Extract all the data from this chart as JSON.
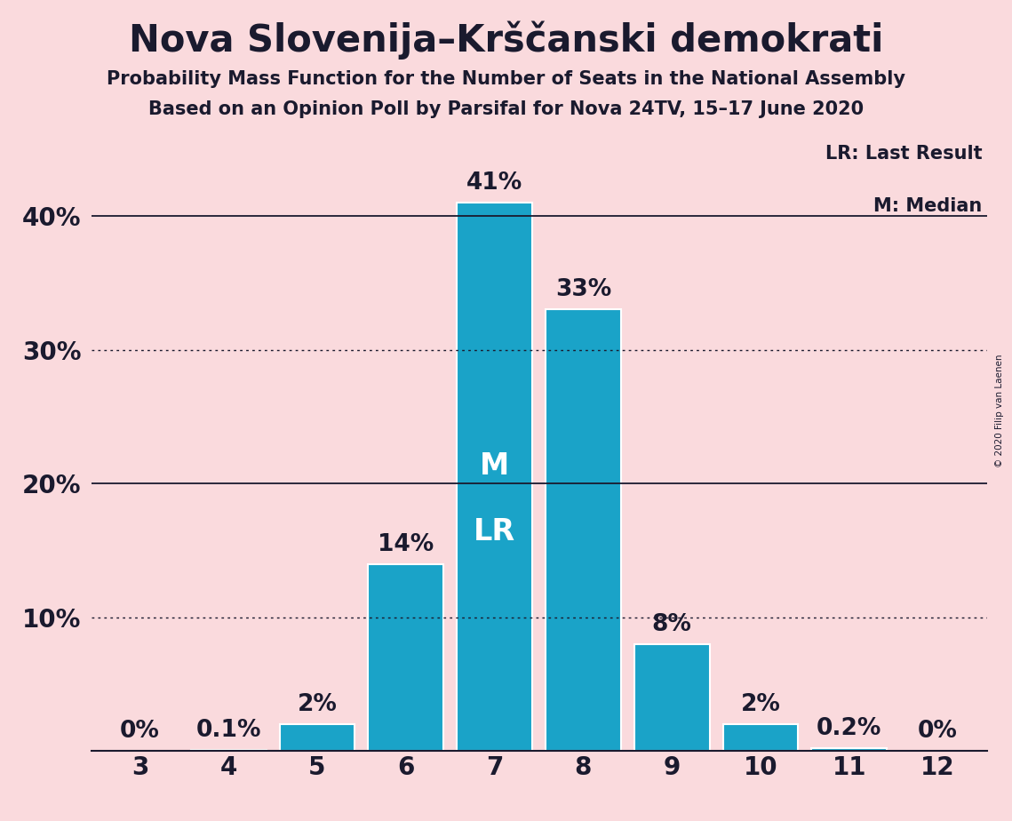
{
  "title": "Nova Slovenija–Krščanski demokrati",
  "subtitle1": "Probability Mass Function for the Number of Seats in the National Assembly",
  "subtitle2": "Based on an Opinion Poll by Parsifal for Nova 24TV, 15–17 June 2020",
  "copyright": "© 2020 Filip van Laenen",
  "categories": [
    3,
    4,
    5,
    6,
    7,
    8,
    9,
    10,
    11,
    12
  ],
  "values": [
    0.0,
    0.1,
    2.0,
    14.0,
    41.0,
    33.0,
    8.0,
    2.0,
    0.2,
    0.0
  ],
  "labels": [
    "0%",
    "0.1%",
    "2%",
    "14%",
    "41%",
    "33%",
    "8%",
    "2%",
    "0.2%",
    "0%"
  ],
  "bar_color": "#1aa3c8",
  "background_color": "#fadadd",
  "bar_edge_color": "white",
  "text_color": "#1a1a2e",
  "median_seat": 7,
  "last_result_seat": 7,
  "median_label": "M",
  "lr_label": "LR",
  "legend_lr": "LR: Last Result",
  "legend_m": "M: Median",
  "ylim": [
    0,
    46
  ],
  "yticks": [
    0,
    10,
    20,
    30,
    40
  ],
  "ytick_labels": [
    "",
    "10%",
    "20%",
    "30%",
    "40%"
  ],
  "hlines_solid": [
    20,
    40
  ],
  "hlines_dotted": [
    10,
    30
  ],
  "title_fontsize": 30,
  "subtitle_fontsize": 15,
  "axis_tick_fontsize": 20,
  "bar_label_fontsize": 19,
  "legend_fontsize": 15,
  "inside_label_fontsize": 24
}
